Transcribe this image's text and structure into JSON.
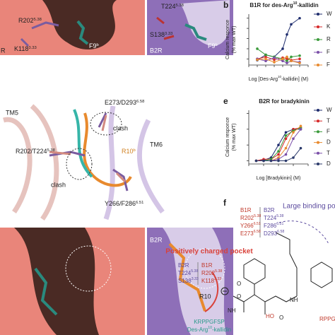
{
  "panel_a": {
    "labels": [
      {
        "text": "R202",
        "sup": "5.38"
      },
      {
        "text": "F9",
        "sup": "b"
      },
      {
        "text": "K118",
        "sup": "3.33"
      },
      "R",
      {
        "text": "T224",
        "sup": "5.38"
      },
      {
        "text": "S138",
        "sup": "3.33"
      },
      {
        "text": "F9",
        "sup": "b"
      },
      "B2R"
    ]
  },
  "panel_d": {
    "labels": [
      "TM5",
      "TM6",
      {
        "text": "E273/D293",
        "sup": "6.58"
      },
      "clash",
      "clash",
      {
        "text": "R202/T224",
        "sup": "5.38"
      },
      {
        "text": "R10",
        "sup": "b"
      },
      {
        "text": "Y266/F286",
        "sup": "6.51"
      }
    ]
  },
  "panel_c": {
    "labels": [
      "B2R",
      "R10"
    ]
  },
  "chart_data": [
    {
      "type": "line",
      "panel_label": "b",
      "title": {
        "text": "B1R for des-Arg",
        "sup": "10",
        "after": "-kallidin"
      },
      "ylabel": [
        "Calcium responce",
        "(% max WT)"
      ],
      "xlabel": {
        "text": "Log [Des-Arg",
        "sup": "10",
        "after": "-kallidin] (M)"
      },
      "xlim": [
        -11,
        -4
      ],
      "xticks": [
        -11,
        -10,
        -9,
        -8,
        -7,
        -6,
        -5,
        -4
      ],
      "ylim": [
        -15,
        110
      ],
      "yticks": [
        0,
        25,
        50,
        75,
        100
      ],
      "x": [
        -10,
        -9,
        -8,
        -7,
        -6.5,
        -6,
        -5
      ],
      "series": [
        {
          "name": "W",
          "color": "#1f2d6e",
          "values": [
            -3,
            10,
            5,
            25,
            60,
            85,
            100
          ]
        },
        {
          "name": "K",
          "color": "#d62728",
          "values": [
            0,
            5,
            -2,
            3,
            0,
            -3,
            0
          ]
        },
        {
          "name": "R",
          "color": "#3a9a3a",
          "values": [
            25,
            10,
            5,
            0,
            -5,
            5,
            8
          ]
        },
        {
          "name": "F",
          "color": "#7b4fa8",
          "values": [
            0,
            -5,
            3,
            -5,
            -10,
            -5,
            -8
          ]
        },
        {
          "name": "F",
          "color": "#e88a2e",
          "values": [
            -2,
            0,
            -8,
            0,
            5,
            -5,
            -10
          ]
        }
      ]
    },
    {
      "type": "line",
      "panel_label": "e",
      "title": "B2R for bradykinin",
      "ylabel": [
        "Calcium responce",
        "(% max WT)"
      ],
      "xlabel": "Log [Bradykinin] (M)",
      "xlim": [
        -12,
        -4
      ],
      "xticks": [
        -12,
        -10,
        -8,
        -6,
        -4
      ],
      "ylim": [
        -10,
        160
      ],
      "yticks": [
        0,
        50,
        100,
        150
      ],
      "x": [
        -11,
        -10,
        -9,
        -8,
        -7,
        -6,
        -5
      ],
      "series": [
        {
          "name": "W",
          "color": "#1f2d6e",
          "values": [
            0,
            2,
            10,
            50,
            90,
            100,
            100
          ]
        },
        {
          "name": "T",
          "color": "#d62728",
          "values": [
            0,
            5,
            5,
            20,
            70,
            100,
            105
          ]
        },
        {
          "name": "F",
          "color": "#3a9a3a",
          "values": [
            0,
            0,
            5,
            30,
            80,
            95,
            105
          ]
        },
        {
          "name": "D",
          "color": "#e88a2e",
          "values": [
            0,
            0,
            0,
            10,
            40,
            90,
            110
          ]
        },
        {
          "name": "T",
          "color": "#7b4fa8",
          "values": [
            0,
            0,
            0,
            5,
            20,
            70,
            100
          ]
        },
        {
          "name": "D",
          "color": "#2b3a6b",
          "values": [
            0,
            0,
            0,
            0,
            0,
            10,
            40
          ]
        }
      ]
    }
  ],
  "panel_f": {
    "label": "f",
    "large_title": "Large binding po",
    "large_table": {
      "header": [
        "B1R",
        "B2R"
      ],
      "rows": [
        [
          {
            "text": "R202",
            "sup": "5.38"
          },
          {
            "text": "T224",
            "sup": "5.38"
          }
        ],
        [
          {
            "text": "Y266",
            "sup": "6.51"
          },
          {
            "text": "F286",
            "sup": "6.51"
          }
        ],
        [
          {
            "text": "E273",
            "sup": "6.58"
          },
          {
            "text": "D293",
            "sup": "6.58"
          }
        ]
      ]
    },
    "positive_title": "Positively charged pocket",
    "positive_table": {
      "header": [
        "B2R",
        "B1R"
      ],
      "rows": [
        [
          {
            "text": "T224",
            "sup": "5.38"
          },
          {
            "text": "R202",
            "sup": "5.38"
          }
        ],
        [
          {
            "text": "S138",
            "sup": "3.33"
          },
          {
            "text": "K118",
            "sup": "3.33"
          }
        ]
      ]
    },
    "atoms": [
      "O",
      "O",
      "NH",
      "HO",
      "O",
      "NH"
    ],
    "peptide": "KRPPGFSP",
    "ligand": {
      "text": "Des-Arg",
      "sup": "10",
      "after": "-kallidin"
    },
    "peptide2": "RPPGF"
  }
}
